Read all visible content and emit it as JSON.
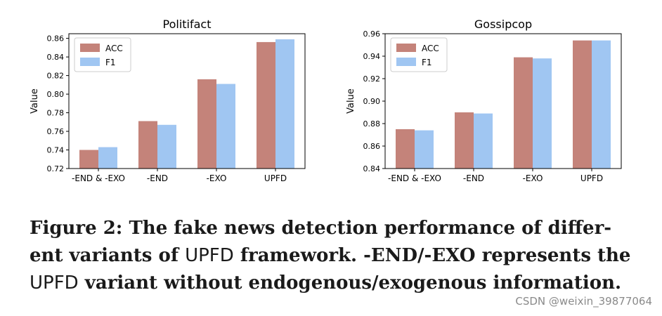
{
  "chart_data": [
    {
      "type": "bar",
      "title": "Politifact",
      "xlabel": "",
      "ylabel": "Value",
      "categories": [
        "-END & -EXO",
        "-END",
        "-EXO",
        "UPFD"
      ],
      "series": [
        {
          "name": "ACC",
          "values": [
            0.74,
            0.771,
            0.816,
            0.856
          ]
        },
        {
          "name": "F1",
          "values": [
            0.743,
            0.767,
            0.811,
            0.859
          ]
        }
      ],
      "ylim": [
        0.72,
        0.865
      ],
      "yticks": [
        "0.72",
        "0.74",
        "0.76",
        "0.78",
        "0.80",
        "0.82",
        "0.84",
        "0.86"
      ],
      "legend": "top-left",
      "grid": false
    },
    {
      "type": "bar",
      "title": "Gossipcop",
      "xlabel": "",
      "ylabel": "Value",
      "categories": [
        "-END & -EXO",
        "-END",
        "-EXO",
        "UPFD"
      ],
      "series": [
        {
          "name": "ACC",
          "values": [
            0.875,
            0.89,
            0.939,
            0.954
          ]
        },
        {
          "name": "F1",
          "values": [
            0.874,
            0.889,
            0.938,
            0.954
          ]
        }
      ],
      "ylim": [
        0.84,
        0.96
      ],
      "yticks": [
        "0.84",
        "0.86",
        "0.88",
        "0.90",
        "0.92",
        "0.94",
        "0.96"
      ],
      "legend": "top-left",
      "grid": false
    }
  ],
  "colors": {
    "ACC": "#c4837a",
    "F1": "#a0c6f2"
  },
  "caption": {
    "prefix": "Figure 2: The fake news detection performance of differ-ent variants of ",
    "upfd1": "UPFD",
    "middle": " framework. -END/-EXO represents the ",
    "upfd2": "UPFD",
    "suffix": " variant without endogenous/exogenous information."
  },
  "watermark": "CSDN @weixin_39877064"
}
